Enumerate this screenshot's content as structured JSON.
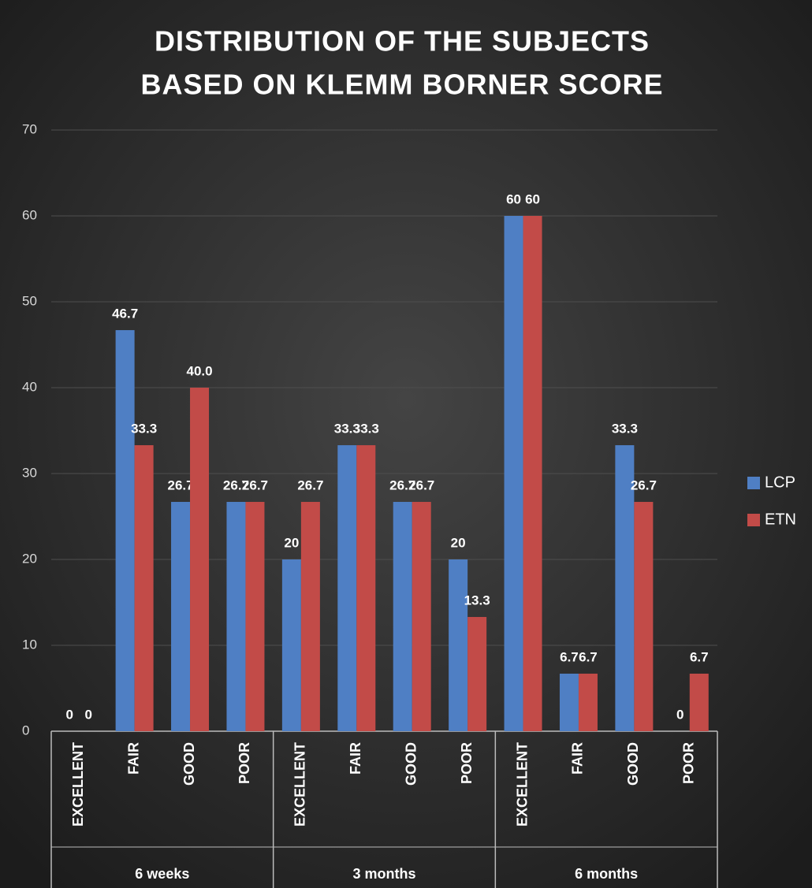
{
  "chart_data": {
    "type": "bar",
    "title": [
      "DISTRIBUTION OF THE SUBJECTS",
      "BASED ON KLEMM BORNER SCORE"
    ],
    "category_groups": [
      {
        "name": "6 weeks",
        "categories": [
          "EXCELLENT",
          "FAIR",
          "GOOD",
          "POOR"
        ]
      },
      {
        "name": "3 months",
        "categories": [
          "EXCELLENT",
          "FAIR",
          "GOOD",
          "POOR"
        ]
      },
      {
        "name": "6 months",
        "categories": [
          "EXCELLENT",
          "FAIR",
          "GOOD",
          "POOR"
        ]
      }
    ],
    "series": [
      {
        "name": "LCP",
        "color": "#4f7fc4",
        "values": [
          0,
          46.7,
          26.7,
          26.7,
          20,
          33.3,
          26.7,
          20,
          60,
          6.7,
          33.3,
          0
        ]
      },
      {
        "name": "ETN",
        "color": "#c24b48",
        "values": [
          0,
          33.3,
          40.0,
          26.7,
          26.7,
          33.3,
          26.7,
          13.3,
          60,
          6.7,
          26.7,
          6.7
        ],
        "value_labels": [
          "0",
          "33.3",
          "40.0",
          "26.7",
          "26.7",
          "33.3",
          "26.7",
          "13.3",
          "60",
          "6.7",
          "26.7",
          "6.7"
        ]
      }
    ],
    "ylim": [
      0,
      70
    ],
    "yticks": [
      0,
      10,
      20,
      30,
      40,
      50,
      60,
      70
    ],
    "grid": true,
    "legend": "right"
  }
}
